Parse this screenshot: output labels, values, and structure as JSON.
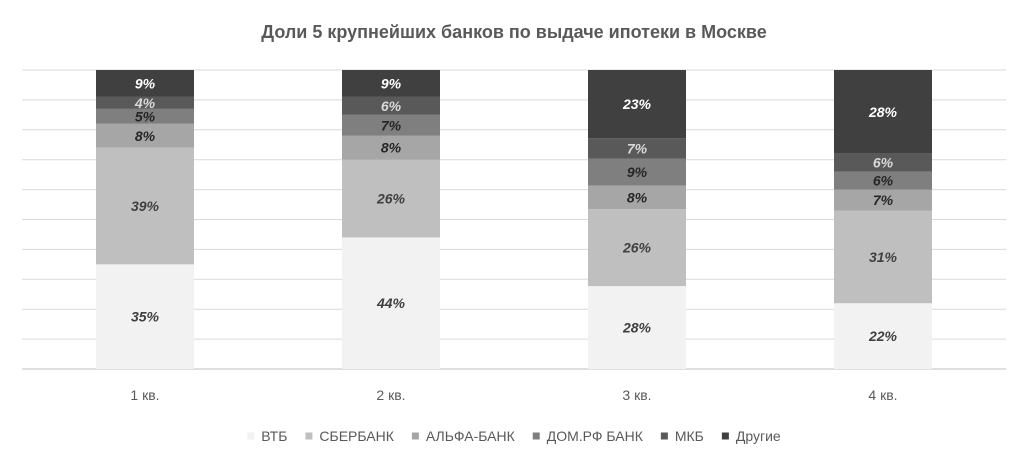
{
  "chart_data": {
    "type": "bar",
    "stacked": true,
    "normalized": true,
    "title": "Доли 5 крупнейших банков по выдаче ипотеки в Москве",
    "xlabel": "",
    "ylabel": "",
    "ylim": [
      0,
      100
    ],
    "grid": true,
    "legend_position": "bottom",
    "categories": [
      "1 кв.",
      "2 кв.",
      "3 кв.",
      "4 кв."
    ],
    "series": [
      {
        "name": "ВТБ",
        "values": [
          35,
          44,
          28,
          22
        ],
        "color": "#f2f2f2",
        "label_color": "#404040"
      },
      {
        "name": "СБЕРБАНК",
        "values": [
          39,
          26,
          26,
          31
        ],
        "color": "#bfbfbf",
        "label_color": "#404040"
      },
      {
        "name": "АЛЬФА-БАНК",
        "values": [
          8,
          8,
          8,
          7
        ],
        "color": "#a6a6a6",
        "label_color": "#262626"
      },
      {
        "name": "ДОМ.РФ БАНК",
        "values": [
          5,
          7,
          9,
          6
        ],
        "color": "#7f7f7f",
        "label_color": "#262626"
      },
      {
        "name": "МКБ",
        "values": [
          4,
          6,
          7,
          6
        ],
        "color": "#595959",
        "label_color": "#d9d9d9"
      },
      {
        "name": "Другие",
        "values": [
          9,
          9,
          23,
          28
        ],
        "color": "#404040",
        "label_color": "#ffffff"
      }
    ],
    "data_labels": [
      [
        "35%",
        "44%",
        "28%",
        "22%"
      ],
      [
        "39%",
        "26%",
        "26%",
        "31%"
      ],
      [
        "8%",
        "8%",
        "8%",
        "7%"
      ],
      [
        "5%",
        "7%",
        "9%",
        "6%"
      ],
      [
        "4%",
        "6%",
        "7%",
        "6%"
      ],
      [
        "9%",
        "9%",
        "23%",
        "28%"
      ]
    ]
  }
}
